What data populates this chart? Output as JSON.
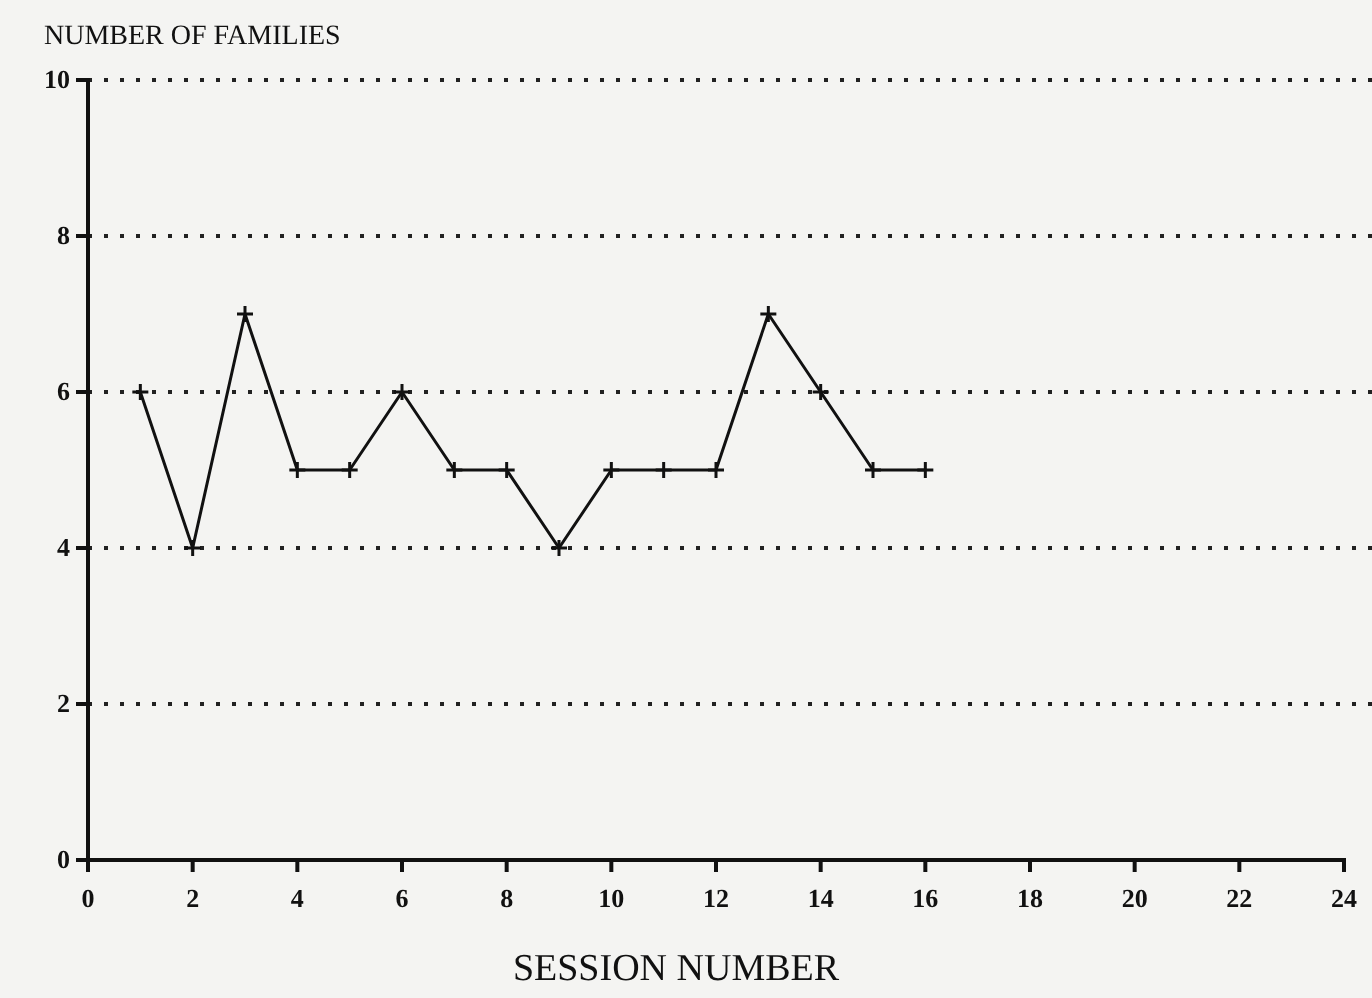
{
  "chart_data": {
    "type": "line",
    "xlabel": "SESSION NUMBER",
    "ylabel": "NUMBER OF FAMILIES",
    "x": [
      1,
      2,
      3,
      4,
      5,
      6,
      7,
      8,
      9,
      10,
      11,
      12,
      13,
      14,
      15,
      16
    ],
    "series": [
      {
        "color": "#111111",
        "values": [
          6,
          4,
          7,
          5,
          5,
          6,
          5,
          5,
          4,
          5,
          5,
          5,
          7,
          6,
          5,
          5
        ]
      }
    ],
    "xlim": [
      0,
      24
    ],
    "xticks": [
      0,
      2,
      4,
      6,
      8,
      10,
      12,
      14,
      16,
      18,
      20,
      22,
      24
    ],
    "ylim": [
      0,
      10
    ],
    "yticks": [
      0,
      2,
      4,
      6,
      8,
      10
    ],
    "grid": "y",
    "marker": "cross",
    "line_style": "solid"
  }
}
